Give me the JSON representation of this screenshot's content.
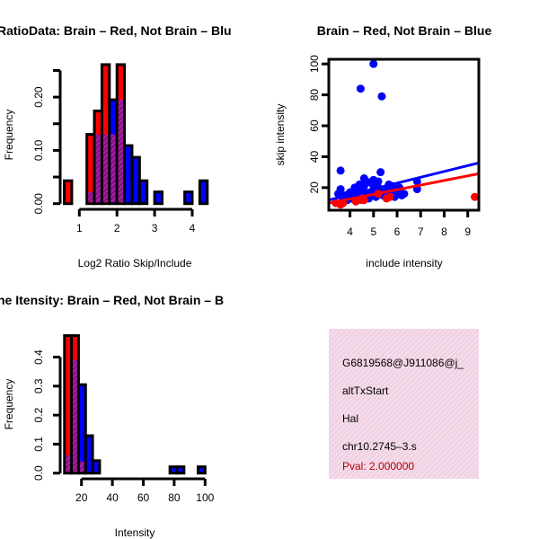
{
  "chart_data": [
    {
      "type": "bar",
      "subtype": "overlaid-histogram",
      "title": "RatioData: Brain – Red, Not Brain – Blu",
      "xlabel": "Log2 Ratio Skip/Include",
      "ylabel": "Frequency",
      "xticks": [
        1,
        2,
        3,
        4
      ],
      "xtick_labels": [
        "1",
        "2",
        "3",
        "4"
      ],
      "yticks": [
        0,
        0.05,
        0.1,
        0.15,
        0.2,
        0.25
      ],
      "ytick_labels": [
        "0.00",
        "",
        "0.10",
        "",
        "0.20",
        ""
      ],
      "bin_start": 0.6,
      "bin_width": 0.2,
      "series": [
        {
          "name": "Brain",
          "color": "#ff0000",
          "values": [
            0.043,
            0,
            0,
            0.13,
            0.174,
            0.261,
            0.13,
            0.261,
            0,
            0,
            0,
            0,
            0,
            0,
            0,
            0,
            0,
            0,
            0
          ]
        },
        {
          "name": "Not Brain",
          "color": "#0000ff",
          "values": [
            0,
            0,
            0,
            0.022,
            0.13,
            0.13,
            0.195,
            0.195,
            0.109,
            0.087,
            0.043,
            0,
            0.022,
            0,
            0,
            0,
            0.022,
            0,
            0.043
          ]
        }
      ],
      "overlap_color": "#9a109a"
    },
    {
      "type": "scatter",
      "title": "Brain – Red, Not Brain – Blue",
      "xlabel": "include intensity",
      "ylabel": "skip intensity",
      "xlim": [
        3.1,
        9.47
      ],
      "ylim": [
        5.4,
        103
      ],
      "xticks": [
        4,
        5,
        6,
        7,
        8,
        9
      ],
      "xtick_labels": [
        "4",
        "5",
        "6",
        "7",
        "8",
        "9"
      ],
      "yticks": [
        20,
        40,
        60,
        80,
        100
      ],
      "ytick_labels": [
        "20",
        "40",
        "60",
        "80",
        "100"
      ],
      "series": [
        {
          "name": "Not Brain",
          "color": "#0000ff",
          "points": [
            [
              3.6,
              31
            ],
            [
              3.6,
              19
            ],
            [
              5.0,
              100
            ],
            [
              4.45,
              84
            ],
            [
              5.35,
              79
            ],
            [
              5.3,
              30
            ],
            [
              4.6,
              26
            ],
            [
              5.0,
              25
            ],
            [
              4.9,
              23
            ],
            [
              5.1,
              22
            ],
            [
              5.65,
              22
            ],
            [
              5.8,
              21
            ],
            [
              6.1,
              20
            ],
            [
              6.85,
              24
            ],
            [
              6.85,
              19
            ],
            [
              4.2,
              20
            ],
            [
              4.0,
              17
            ],
            [
              3.8,
              15
            ],
            [
              3.7,
              13
            ],
            [
              3.9,
              12
            ],
            [
              4.1,
              14
            ],
            [
              4.3,
              16
            ],
            [
              4.5,
              18
            ],
            [
              4.6,
              21
            ],
            [
              4.7,
              15
            ],
            [
              4.8,
              13
            ],
            [
              4.9,
              17
            ],
            [
              5.0,
              19
            ],
            [
              5.1,
              14
            ],
            [
              5.2,
              20
            ],
            [
              5.3,
              16
            ],
            [
              5.4,
              15
            ],
            [
              5.5,
              18
            ],
            [
              5.7,
              16
            ],
            [
              5.9,
              14
            ],
            [
              6.0,
              17
            ],
            [
              6.2,
              15
            ],
            [
              6.3,
              16
            ],
            [
              4.4,
              22
            ],
            [
              4.7,
              24
            ],
            [
              5.2,
              24
            ],
            [
              3.5,
              16
            ],
            [
              6.0,
              19
            ],
            [
              4.2,
              12
            ],
            [
              5.6,
              20
            ]
          ],
          "fit_line": [
            [
              3.1,
              12
            ],
            [
              9.47,
              36
            ]
          ]
        },
        {
          "name": "Brain",
          "color": "#ff0000",
          "points": [
            [
              3.4,
              10
            ],
            [
              3.6,
              9
            ],
            [
              3.7,
              10
            ],
            [
              4.25,
              11
            ],
            [
              4.45,
              12
            ],
            [
              4.55,
              13
            ],
            [
              4.6,
              12
            ],
            [
              5.55,
              13
            ],
            [
              5.7,
              14
            ],
            [
              5.2,
              16
            ],
            [
              9.3,
              14
            ]
          ],
          "fit_line": [
            [
              3.1,
              10
            ],
            [
              9.47,
              29
            ]
          ]
        }
      ]
    },
    {
      "type": "bar",
      "subtype": "overlaid-histogram",
      "title": "ne Itensity: Brain – Red, Not Brain – B",
      "xlabel": "Intensity",
      "ylabel": "Frequency",
      "xticks": [
        20,
        40,
        60,
        80,
        100
      ],
      "xtick_labels": [
        "20",
        "40",
        "60",
        "80",
        "100"
      ],
      "yticks": [
        0,
        0.1,
        0.2,
        0.3,
        0.4
      ],
      "ytick_labels": [
        "0.0",
        "0.1",
        "0.2",
        "0.3",
        "0.4"
      ],
      "bin_start": 9,
      "bin_width": 4.55,
      "series": [
        {
          "name": "Brain",
          "color": "#ff0000",
          "values": [
            0.474,
            0.474,
            0.04,
            0,
            0,
            0,
            0,
            0,
            0,
            0,
            0,
            0,
            0,
            0,
            0,
            0,
            0,
            0,
            0,
            0
          ]
        },
        {
          "name": "Not Brain",
          "color": "#0000ff",
          "values": [
            0.062,
            0.39,
            0.305,
            0.129,
            0.043,
            0,
            0,
            0,
            0,
            0,
            0,
            0,
            0,
            0,
            0,
            0.022,
            0.022,
            0,
            0,
            0.022
          ]
        }
      ],
      "overlap_color": "#9a109a"
    }
  ],
  "info_panel": {
    "lines": [
      "G6819568@J911086@j_",
      "altTxStart",
      "Hal",
      "chr10.2745–3.s"
    ],
    "pval": "Pval: 2.000000",
    "pval_color": "#b00000"
  }
}
